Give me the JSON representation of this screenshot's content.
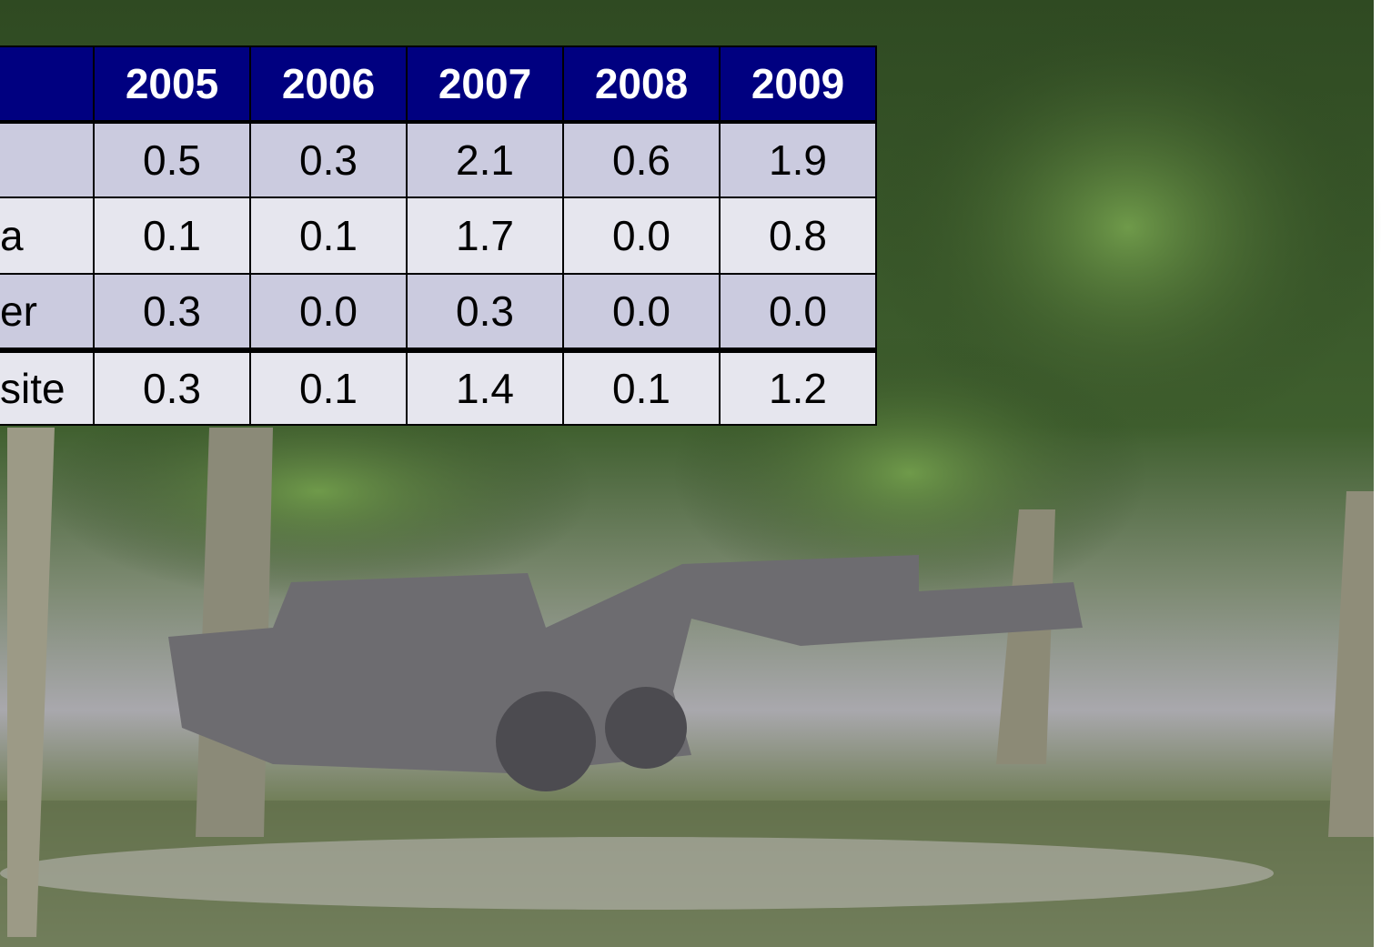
{
  "header": {
    "years": [
      "2005",
      "2006",
      "2007",
      "2008",
      "2009"
    ]
  },
  "rows": [
    {
      "values": [
        "0.5",
        "0.3",
        "2.1",
        "0.6",
        "1.9"
      ]
    },
    {
      "label": "a",
      "values": [
        "0.1",
        "0.1",
        "1.7",
        "0.0",
        "0.8"
      ]
    },
    {
      "label": "er",
      "values": [
        "0.3",
        "0.0",
        "0.3",
        "0.0",
        "0.0"
      ]
    },
    {
      "label": "site",
      "values": [
        "0.3",
        "0.1",
        "1.4",
        "0.1",
        "1.2"
      ]
    }
  ]
}
